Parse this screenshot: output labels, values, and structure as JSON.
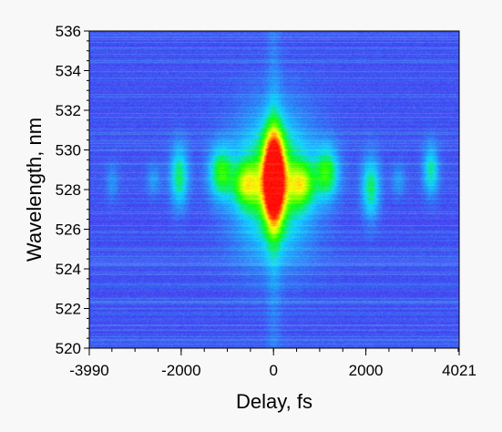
{
  "chart_data": {
    "type": "heatmap",
    "title": "",
    "xlabel": "Delay, fs",
    "ylabel": "Wavelength, nm",
    "xlim": [
      -3990,
      4021
    ],
    "ylim": [
      520,
      536
    ],
    "x_ticks": [
      -3990,
      -2000,
      0,
      2000,
      4021
    ],
    "x_tick_labels": [
      "-3990",
      "-2000",
      "0",
      "2000",
      "4021"
    ],
    "y_ticks": [
      520,
      522,
      524,
      526,
      528,
      530,
      532,
      534,
      536
    ],
    "y_tick_labels": [
      "520",
      "522",
      "524",
      "526",
      "528",
      "530",
      "532",
      "534",
      "536"
    ],
    "colormap": [
      "#3b3bf0",
      "#00d0ff",
      "#00ff00",
      "#ffff00",
      "#ff0000"
    ],
    "background_color": "#3b3bf0",
    "features": [
      {
        "x": 0,
        "y": 528.6,
        "sx": 160,
        "sy": 1.6,
        "amp": 1.0
      },
      {
        "x": 0,
        "y": 528.3,
        "sx": 600,
        "sy": 2.4,
        "amp": 0.5
      },
      {
        "x": -1150,
        "y": 528.9,
        "sx": 180,
        "sy": 0.9,
        "amp": 0.42
      },
      {
        "x": 1150,
        "y": 528.9,
        "sx": 180,
        "sy": 0.9,
        "amp": 0.42
      },
      {
        "x": -600,
        "y": 528.3,
        "sx": 200,
        "sy": 0.8,
        "amp": 0.4
      },
      {
        "x": 600,
        "y": 528.3,
        "sx": 200,
        "sy": 0.8,
        "amp": 0.4
      },
      {
        "x": -2050,
        "y": 528.7,
        "sx": 140,
        "sy": 1.1,
        "amp": 0.38
      },
      {
        "x": 2100,
        "y": 528.1,
        "sx": 140,
        "sy": 1.1,
        "amp": 0.38
      },
      {
        "x": 3400,
        "y": 529.0,
        "sx": 120,
        "sy": 0.9,
        "amp": 0.33
      },
      {
        "x": -3500,
        "y": 528.4,
        "sx": 100,
        "sy": 0.7,
        "amp": 0.12
      },
      {
        "x": -2600,
        "y": 528.5,
        "sx": 110,
        "sy": 0.6,
        "amp": 0.14
      },
      {
        "x": 2700,
        "y": 528.5,
        "sx": 110,
        "sy": 0.6,
        "amp": 0.14
      },
      {
        "x": 0,
        "y": 528,
        "sx": 110,
        "sy": 9,
        "amp": 0.1
      }
    ]
  }
}
